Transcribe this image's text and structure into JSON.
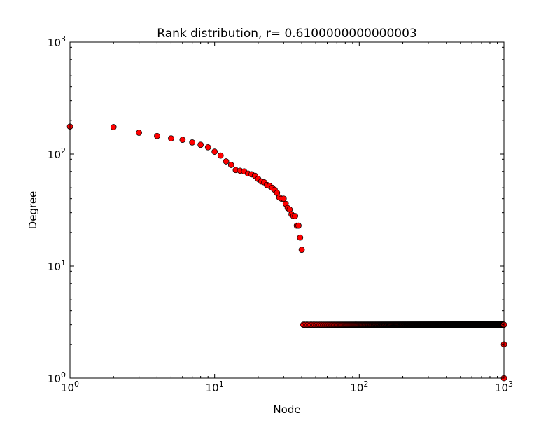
{
  "chart_data": {
    "type": "scatter",
    "title": "Rank distribution, r= 0.6100000000000003",
    "xlabel": "Node",
    "ylabel": "Degree",
    "xscale": "log",
    "yscale": "log",
    "xlim": [
      1,
      1000
    ],
    "ylim": [
      1,
      1000
    ],
    "grid": false,
    "marker_color": "#ff0000",
    "marker_edge_color": "#000000",
    "x_ticks": [
      {
        "value": 1,
        "base": "10",
        "exp": "0"
      },
      {
        "value": 10,
        "base": "10",
        "exp": "1"
      },
      {
        "value": 100,
        "base": "10",
        "exp": "2"
      },
      {
        "value": 1000,
        "base": "10",
        "exp": "3"
      }
    ],
    "y_ticks": [
      {
        "value": 1,
        "base": "10",
        "exp": "0"
      },
      {
        "value": 10,
        "base": "10",
        "exp": "1"
      },
      {
        "value": 100,
        "base": "10",
        "exp": "2"
      },
      {
        "value": 1000,
        "base": "10",
        "exp": "3"
      }
    ],
    "head_points": [
      [
        1,
        176
      ],
      [
        2,
        174
      ],
      [
        3,
        155
      ],
      [
        4,
        145
      ],
      [
        5,
        138
      ],
      [
        6,
        134
      ],
      [
        7,
        127
      ],
      [
        8,
        121
      ],
      [
        9,
        115
      ],
      [
        10,
        105
      ],
      [
        11,
        97
      ],
      [
        12,
        86
      ],
      [
        13,
        80
      ],
      [
        14,
        72
      ],
      [
        15,
        71
      ],
      [
        16,
        70
      ],
      [
        17,
        67
      ],
      [
        18,
        66
      ],
      [
        19,
        64
      ],
      [
        20,
        60
      ],
      [
        21,
        57
      ],
      [
        22,
        56
      ],
      [
        23,
        53
      ],
      [
        24,
        52
      ],
      [
        25,
        50
      ],
      [
        26,
        48
      ],
      [
        27,
        45
      ],
      [
        28,
        41
      ],
      [
        29,
        40
      ],
      [
        30,
        40
      ],
      [
        31,
        36
      ],
      [
        32,
        33
      ],
      [
        33,
        32
      ],
      [
        34,
        29
      ],
      [
        35,
        28
      ],
      [
        36,
        28
      ],
      [
        37,
        23
      ],
      [
        38,
        23
      ],
      [
        39,
        18
      ],
      [
        40,
        14
      ]
    ],
    "tail_segment": {
      "x_from": 41,
      "x_to": 997,
      "y": 3
    },
    "end_points": [
      [
        1000,
        3
      ],
      [
        1000,
        2
      ],
      [
        1000,
        1
      ]
    ]
  }
}
